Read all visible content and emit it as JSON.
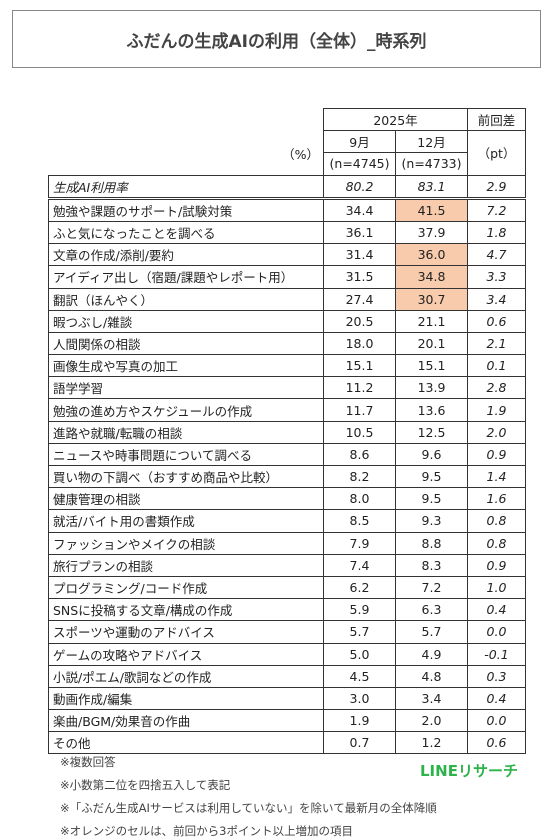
{
  "title": "ふだんの生成AIの利用（全体）_時系列",
  "table": {
    "unit": "（%）",
    "year": "2025年",
    "diff_header": "前回差",
    "diff_unit": "（pt）",
    "columns": [
      {
        "month": "9月",
        "n": "(n=4745)"
      },
      {
        "month": "12月",
        "n": "(n=4733)"
      }
    ],
    "highlight_color": "#f8cbad",
    "total": {
      "label": "生成AI利用率",
      "values": [
        "80.2",
        "83.1"
      ],
      "diff": "2.9"
    },
    "rows": [
      {
        "label": "勉強や課題のサポート/試験対策",
        "values": [
          "34.4",
          "41.5"
        ],
        "diff": "7.2",
        "highlight": true
      },
      {
        "label": "ふと気になったことを調べる",
        "values": [
          "36.1",
          "37.9"
        ],
        "diff": "1.8",
        "highlight": false
      },
      {
        "label": "文章の作成/添削/要約",
        "values": [
          "31.4",
          "36.0"
        ],
        "diff": "4.7",
        "highlight": true
      },
      {
        "label": "アイディア出し（宿題/課題やレポート用）",
        "values": [
          "31.5",
          "34.8"
        ],
        "diff": "3.3",
        "highlight": true
      },
      {
        "label": "翻訳（ほんやく）",
        "values": [
          "27.4",
          "30.7"
        ],
        "diff": "3.4",
        "highlight": true
      },
      {
        "label": "暇つぶし/雑談",
        "values": [
          "20.5",
          "21.1"
        ],
        "diff": "0.6",
        "highlight": false
      },
      {
        "label": "人間関係の相談",
        "values": [
          "18.0",
          "20.1"
        ],
        "diff": "2.1",
        "highlight": false
      },
      {
        "label": "画像生成や写真の加工",
        "values": [
          "15.1",
          "15.1"
        ],
        "diff": "0.1",
        "highlight": false
      },
      {
        "label": "語学学習",
        "values": [
          "11.2",
          "13.9"
        ],
        "diff": "2.8",
        "highlight": false
      },
      {
        "label": "勉強の進め方やスケジュールの作成",
        "values": [
          "11.7",
          "13.6"
        ],
        "diff": "1.9",
        "highlight": false
      },
      {
        "label": "進路や就職/転職の相談",
        "values": [
          "10.5",
          "12.5"
        ],
        "diff": "2.0",
        "highlight": false
      },
      {
        "label": "ニュースや時事問題について調べる",
        "values": [
          "8.6",
          "9.6"
        ],
        "diff": "0.9",
        "highlight": false
      },
      {
        "label": "買い物の下調べ（おすすめ商品や比較）",
        "values": [
          "8.2",
          "9.5"
        ],
        "diff": "1.4",
        "highlight": false
      },
      {
        "label": "健康管理の相談",
        "values": [
          "8.0",
          "9.5"
        ],
        "diff": "1.6",
        "highlight": false
      },
      {
        "label": "就活/バイト用の書類作成",
        "values": [
          "8.5",
          "9.3"
        ],
        "diff": "0.8",
        "highlight": false
      },
      {
        "label": "ファッションやメイクの相談",
        "values": [
          "7.9",
          "8.8"
        ],
        "diff": "0.8",
        "highlight": false
      },
      {
        "label": "旅行プランの相談",
        "values": [
          "7.4",
          "8.3"
        ],
        "diff": "0.9",
        "highlight": false
      },
      {
        "label": "プログラミング/コード作成",
        "values": [
          "6.2",
          "7.2"
        ],
        "diff": "1.0",
        "highlight": false
      },
      {
        "label": "SNSに投稿する文章/構成の作成",
        "values": [
          "5.9",
          "6.3"
        ],
        "diff": "0.4",
        "highlight": false
      },
      {
        "label": "スポーツや運動のアドバイス",
        "values": [
          "5.7",
          "5.7"
        ],
        "diff": "0.0",
        "highlight": false
      },
      {
        "label": "ゲームの攻略やアドバイス",
        "values": [
          "5.0",
          "4.9"
        ],
        "diff": "-0.1",
        "highlight": false
      },
      {
        "label": "小説/ポエム/歌詞などの作成",
        "values": [
          "4.5",
          "4.8"
        ],
        "diff": "0.3",
        "highlight": false
      },
      {
        "label": "動画作成/編集",
        "values": [
          "3.0",
          "3.4"
        ],
        "diff": "0.4",
        "highlight": false
      },
      {
        "label": "楽曲/BGM/効果音の作曲",
        "values": [
          "1.9",
          "2.0"
        ],
        "diff": "0.0",
        "highlight": false
      },
      {
        "label": "その他",
        "values": [
          "0.7",
          "1.2"
        ],
        "diff": "0.6",
        "highlight": false
      }
    ]
  },
  "notes": [
    "※複数回答",
    "※小数第二位を四捨五入して表記",
    "※「ふだん生成AIサービスは利用していない」を除いて最新月の全体降順",
    "※オレンジのセルは、前回から3ポイント以上増加の項目"
  ],
  "brand": "LINEリサーチ"
}
